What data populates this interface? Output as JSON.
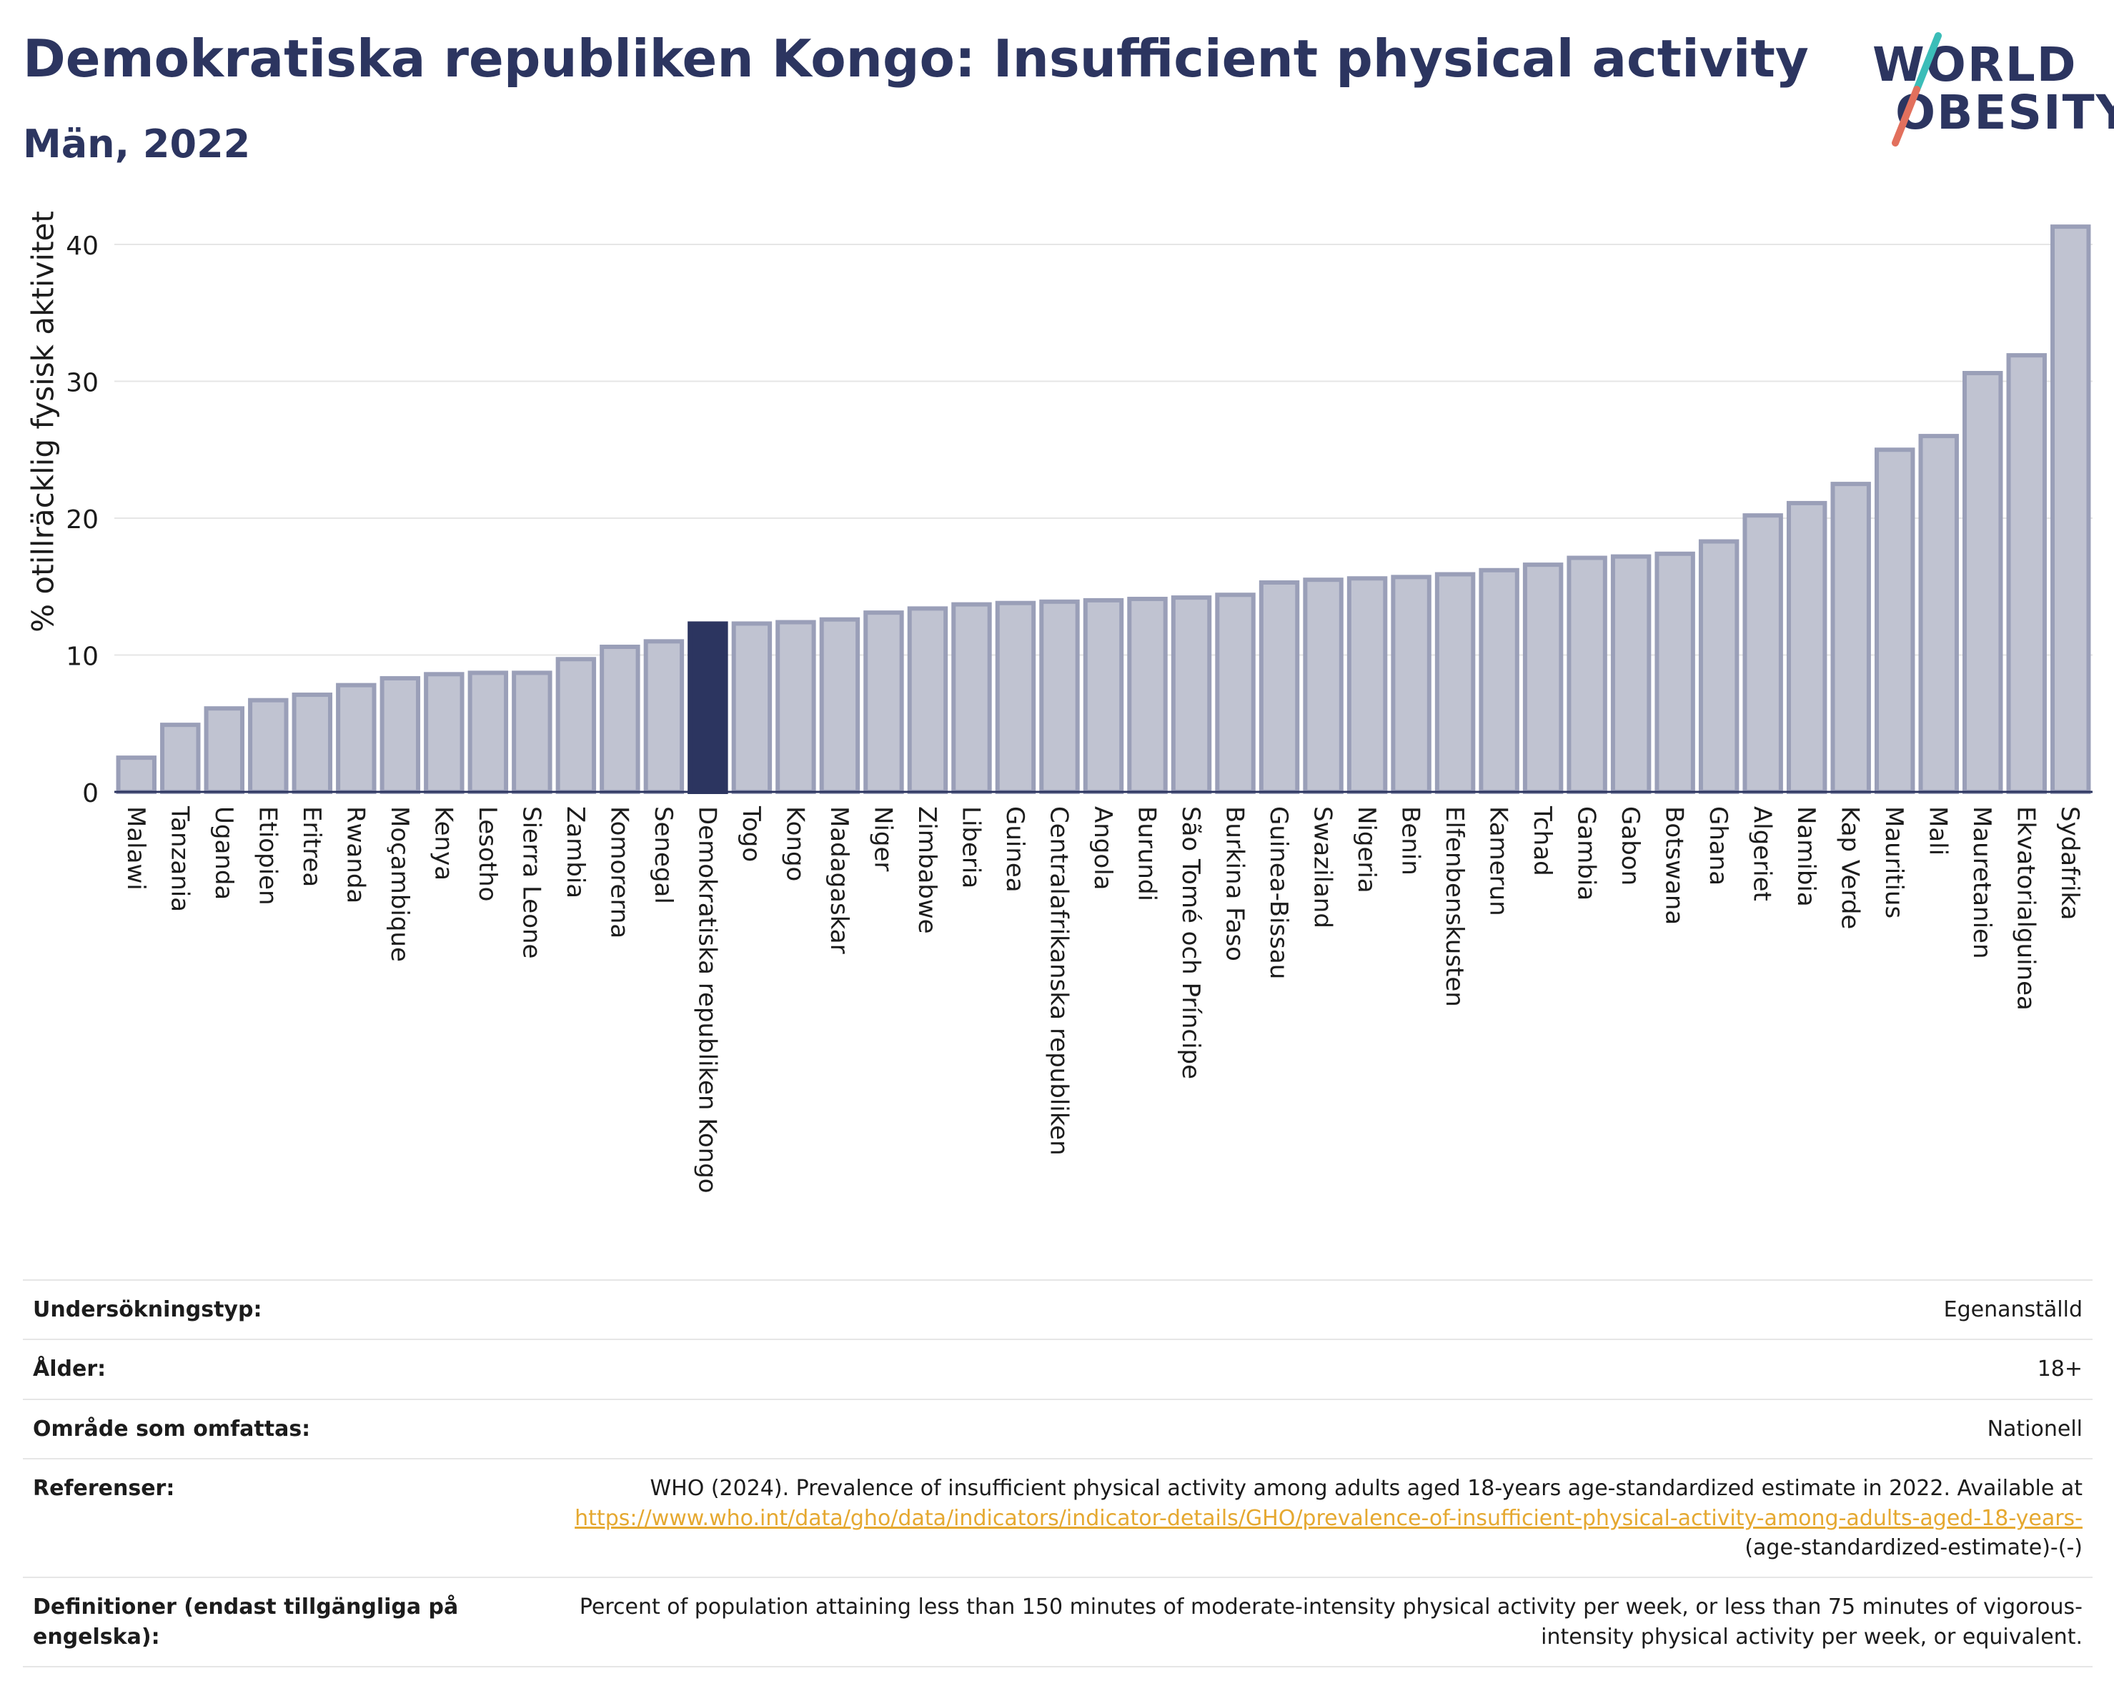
{
  "header": {
    "title": "Demokratiska republiken Kongo: Insufficient physical activity",
    "subtitle": "Män, 2022"
  },
  "logo": {
    "line1": "WORLD",
    "line2": "OBESITY"
  },
  "colors": {
    "highlight": "#2c3560",
    "bar": "#c0c3d1",
    "bar_border": "#9a9fb8",
    "grid": "#e6e6e6",
    "link": "#e5a830"
  },
  "chart_data": {
    "type": "bar",
    "title": "Demokratiska republiken Kongo: Insufficient physical activity",
    "subtitle": "Män, 2022",
    "xlabel": "",
    "ylabel": "% otillräcklig fysisk aktivitet",
    "ylim": [
      0,
      43
    ],
    "yticks": [
      0,
      10,
      20,
      30,
      40
    ],
    "grid": true,
    "highlight": "Demokratiska republiken Kongo",
    "categories": [
      "Malawi",
      "Tanzania",
      "Uganda",
      "Etiopien",
      "Eritrea",
      "Rwanda",
      "Moçambique",
      "Kenya",
      "Lesotho",
      "Sierra Leone",
      "Zambia",
      "Komorerna",
      "Senegal",
      "Demokratiska republiken Kongo",
      "Togo",
      "Kongo",
      "Madagaskar",
      "Niger",
      "Zimbabwe",
      "Liberia",
      "Guinea",
      "Centralafrikanska republiken",
      "Angola",
      "Burundi",
      "São Tomé och Príncipe",
      "Burkina Faso",
      "Guinea-Bissau",
      "Swaziland",
      "Nigeria",
      "Benin",
      "Elfenbenskusten",
      "Kamerun",
      "Tchad",
      "Gambia",
      "Gabon",
      "Botswana",
      "Ghana",
      "Algeriet",
      "Namibia",
      "Kap Verde",
      "Mauritius",
      "Mali",
      "Mauretanien",
      "Ekvatorialguinea",
      "Sydafrika"
    ],
    "values": [
      2.5,
      4.9,
      6.1,
      6.7,
      7.1,
      7.8,
      8.3,
      8.6,
      8.7,
      8.7,
      9.7,
      10.6,
      11.0,
      12.3,
      12.3,
      12.4,
      12.6,
      13.1,
      13.4,
      13.7,
      13.8,
      13.9,
      14.0,
      14.1,
      14.2,
      14.4,
      15.3,
      15.5,
      15.6,
      15.7,
      15.9,
      16.2,
      16.6,
      17.1,
      17.2,
      17.4,
      18.3,
      20.2,
      21.1,
      22.5,
      25.0,
      26.0,
      30.6,
      31.9,
      41.3
    ]
  },
  "info": {
    "rows": [
      {
        "label": "Undersökningstyp:",
        "value": "Egenanställd"
      },
      {
        "label": "Ålder:",
        "value": "18+"
      },
      {
        "label": "Område som omfattas:",
        "value": "Nationell"
      },
      {
        "label": "Referenser:",
        "value_text": "WHO (2024). Prevalence of insufficient physical activity among adults aged 18-years age-standardized estimate in 2022. Available at",
        "value_link": "https://www.who.int/data/gho/data/indicators/indicator-details/GHO/prevalence-of-insufficient-physical-activity-among-adults-aged-18-years-",
        "value_tail": "(age-standardized-estimate)-(-)"
      },
      {
        "label": "Definitioner (endast tillgängliga på engelska):",
        "value": "Percent of population attaining less than 150 minutes of moderate-intensity physical activity per week, or less than 75 minutes of vigorous-intensity physical activity per week, or equivalent."
      }
    ]
  }
}
